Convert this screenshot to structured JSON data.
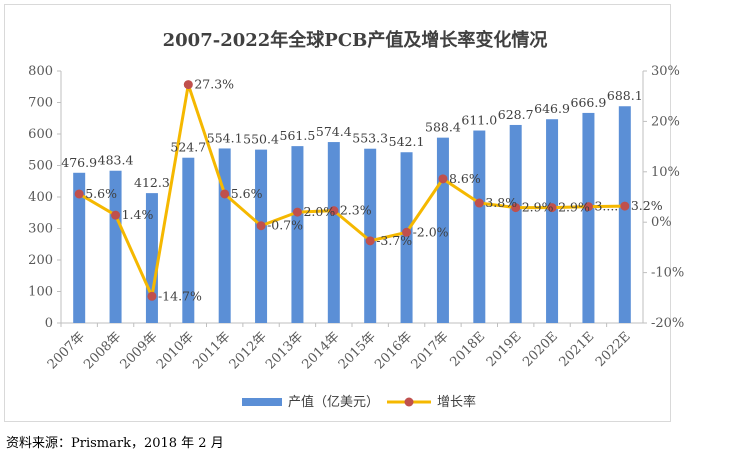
{
  "chart_data": {
    "type": "bar+line",
    "title": "2007-2022年全球PCB产值及增长率变化情况",
    "categories": [
      "2007年",
      "2008年",
      "2009年",
      "2010年",
      "2011年",
      "2012年",
      "2013年",
      "2014年",
      "2015年",
      "2016年",
      "2017年",
      "2018E",
      "2019E",
      "2020E",
      "2021E",
      "2022E"
    ],
    "series": [
      {
        "name": "产值（亿美元）",
        "type": "bar",
        "axis": "left",
        "color": "#5b8fd6",
        "values": [
          476.9,
          483.4,
          412.3,
          524.7,
          554.1,
          550.4,
          561.5,
          574.4,
          553.3,
          542.1,
          588.4,
          611.0,
          628.7,
          646.9,
          666.9,
          688.1
        ],
        "labels": [
          "476.9",
          "483.4",
          "412.3",
          "524.7",
          "554.1",
          "550.4",
          "561.5",
          "574.4",
          "553.3",
          "542.1",
          "588.4",
          "611.0",
          "628.7",
          "646.9",
          "666.9",
          "688.1"
        ]
      },
      {
        "name": "增长率",
        "type": "line",
        "axis": "right",
        "color": "#f5b800",
        "marker_color": "#c0504d",
        "values": [
          5.6,
          1.4,
          -14.7,
          27.3,
          5.6,
          -0.7,
          2.0,
          2.3,
          -3.7,
          -2.0,
          8.6,
          3.8,
          2.9,
          2.9,
          3.1,
          3.2
        ],
        "labels": [
          "5.6%",
          "1.4%",
          "-14.7%",
          "27.3%",
          "5.6%",
          "-0.7%",
          "2.0%",
          "2.3%",
          "-3.7%",
          "-2.0%",
          "8.6%",
          "3.8%",
          "2.9%",
          "2.9%",
          "3....",
          "3.2%"
        ]
      }
    ],
    "y_left": {
      "min": 0,
      "max": 800,
      "ticks": [
        "0",
        "100",
        "200",
        "300",
        "400",
        "500",
        "600",
        "700",
        "800"
      ]
    },
    "y_right": {
      "min": -20,
      "max": 30,
      "ticks": [
        "-20%",
        "-10%",
        "0%",
        "10%",
        "20%",
        "30%"
      ]
    },
    "legend_position": "bottom",
    "grid": false
  },
  "source_note": "资料来源：Prismark，2018 年 2 月"
}
